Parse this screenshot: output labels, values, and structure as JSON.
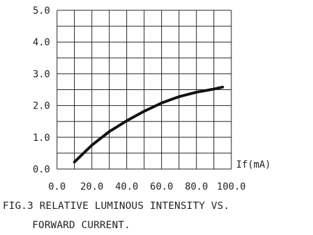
{
  "chart_data": {
    "type": "line",
    "x": [
      10,
      20,
      30,
      40,
      50,
      60,
      70,
      80,
      90,
      95
    ],
    "series": [
      {
        "values": [
          0.22,
          0.75,
          1.18,
          1.52,
          1.82,
          2.08,
          2.28,
          2.42,
          2.52,
          2.58
        ]
      }
    ],
    "xlim": [
      0,
      100
    ],
    "ylim": [
      0,
      5
    ],
    "x_tick_labels": [
      "0.0",
      "20.0",
      "40.0",
      "60.0",
      "80.0",
      "100.0"
    ],
    "y_tick_labels": [
      "0.0",
      "1.0",
      "2.0",
      "3.0",
      "4.0",
      "5.0"
    ],
    "xlabel": "If(mA)",
    "ylabel": "",
    "grid": true
  },
  "caption": {
    "line1": "FIG.3 RELATIVE LUMINOUS INTENSITY VS.",
    "line2": "FORWARD CURRENT."
  },
  "colors": {
    "line": "#111111",
    "grid": "#222222"
  }
}
